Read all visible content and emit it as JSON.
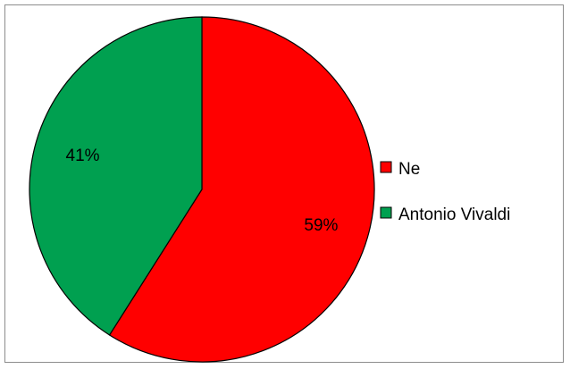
{
  "chart_data": {
    "type": "pie",
    "slices": [
      {
        "name": "Ne",
        "value": 59,
        "label": "59%",
        "color": "#ff0000"
      },
      {
        "name": "Antonio Vivaldi",
        "value": 41,
        "label": "41%",
        "color": "#00a050"
      }
    ],
    "legend": {
      "placement": "right",
      "entries": [
        "Ne",
        "Antonio Vivaldi"
      ]
    }
  }
}
